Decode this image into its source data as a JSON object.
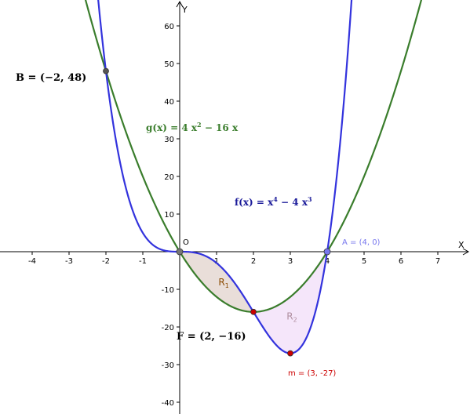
{
  "chart_data": {
    "type": "line",
    "xlabel": "X",
    "ylabel": "Y",
    "origin_label": "O",
    "xlim": [
      -4.9,
      7.8
    ],
    "ylim": [
      -43,
      67
    ],
    "x_ticks": [
      {
        "value": -4,
        "label": "-4"
      },
      {
        "value": -3,
        "label": "-3"
      },
      {
        "value": -2,
        "label": "-2"
      },
      {
        "value": -1,
        "label": "-1"
      },
      {
        "value": 1,
        "label": "1"
      },
      {
        "value": 2,
        "label": "2"
      },
      {
        "value": 3,
        "label": "3"
      },
      {
        "value": 4,
        "label": "4"
      },
      {
        "value": 5,
        "label": "5"
      },
      {
        "value": 6,
        "label": "6"
      },
      {
        "value": 7,
        "label": "7"
      }
    ],
    "y_ticks": [
      {
        "value": -40,
        "label": "-40"
      },
      {
        "value": -30,
        "label": "-30"
      },
      {
        "value": -20,
        "label": "-20"
      },
      {
        "value": -10,
        "label": "-10"
      },
      {
        "value": 10,
        "label": "10"
      },
      {
        "value": 20,
        "label": "20"
      },
      {
        "value": 30,
        "label": "30"
      },
      {
        "value": 40,
        "label": "40"
      },
      {
        "value": 50,
        "label": "50"
      },
      {
        "value": 60,
        "label": "60"
      }
    ],
    "grid": false,
    "series": [
      {
        "name": "g",
        "label_fn": "g(x)",
        "label_eq": "=",
        "label_a": "4",
        "label_var": "x",
        "label_exp": "2",
        "label_b": "− 16",
        "label_var2": "x",
        "coeffs": {
          "x4": 0,
          "x3": 0,
          "x2": 4,
          "x1": -16,
          "x0": 0
        },
        "domain": [
          -2.9,
          7.4
        ],
        "color": "#3a7d2c"
      },
      {
        "name": "f",
        "label_fn": "f(x)",
        "label_eq": "=",
        "label_var": "x",
        "label_exp": "4",
        "label_b": "− 4",
        "label_var2": "x",
        "label_exp2": "3",
        "coeffs": {
          "x4": 1,
          "x3": -4,
          "x2": 0,
          "x1": 0,
          "x0": 0
        },
        "domain": [
          -2.25,
          4.68
        ],
        "color": "#3333dd"
      }
    ],
    "regions": [
      {
        "name": "R",
        "sub": "1",
        "x_from": 0,
        "x_to": 2,
        "upper": "f",
        "lower": "g",
        "fill": "#e9ded9",
        "label_color": "#8a4a00",
        "label_x": 1.05,
        "label_y": -9
      },
      {
        "name": "R",
        "sub": "2",
        "x_from": 2,
        "x_to": 4,
        "upper": "g",
        "lower": "f",
        "fill": "#f5e6fa",
        "label_color": "#b08fa0",
        "label_x": 2.9,
        "label_y": -18
      }
    ],
    "points": [
      {
        "id": "B",
        "x": -2,
        "y": 48,
        "text": "B = (−2, 48)",
        "color": "#555555"
      },
      {
        "id": "O",
        "x": 0,
        "y": 0,
        "text": "",
        "color": "#777777"
      },
      {
        "id": "F",
        "x": 2,
        "y": -16,
        "text": "F = (2, −16)",
        "color": "#cc0000"
      },
      {
        "id": "m",
        "x": 3,
        "y": -27,
        "text": "m = (3, -27)",
        "color": "#cc0000"
      },
      {
        "id": "A",
        "x": 4,
        "y": 0,
        "text": "A = (4, 0)",
        "color": "#7777ee"
      }
    ]
  }
}
